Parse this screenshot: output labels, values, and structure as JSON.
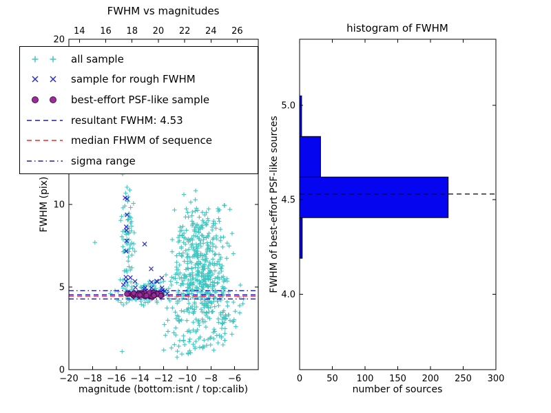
{
  "colors": {
    "cyan": "#3fc6c0",
    "blue_marker": "#2a2ac8",
    "blue_line": "#1a1ab8",
    "red": "#ff2222",
    "purple_fill": "#9b2d9b",
    "purple_edge": "#4b0f4b",
    "hist_fill": "#0505f0",
    "frame": "#000000",
    "text": "#000000"
  },
  "chart_data": [
    {
      "id": "fwhm-vs-mag",
      "type": "scatter",
      "title": "FWHM vs magnitudes",
      "xlabel": "magnitude (bottom:isnt / top:calib)",
      "ylabel": "FWHM (pix)",
      "xlim": [
        -20,
        -4
      ],
      "ylim": [
        0,
        20
      ],
      "grid": false,
      "x_ticks": {
        "values": [
          -20,
          -18,
          -16,
          -14,
          -12,
          -10,
          -8,
          -6
        ],
        "labels": [
          "−20",
          "−18",
          "−16",
          "−14",
          "−12",
          "−10",
          "−8",
          "−6"
        ]
      },
      "y_ticks": {
        "values": [
          0,
          5,
          10,
          15,
          20
        ],
        "labels": [
          "0",
          "5",
          "10",
          "15",
          "20"
        ]
      },
      "top_axis": {
        "lim": [
          13.2,
          27.6
        ],
        "values": [
          14,
          16,
          18,
          20,
          22,
          24,
          26
        ],
        "labels": [
          "14",
          "16",
          "18",
          "20",
          "22",
          "24",
          "26"
        ]
      },
      "hlines": [
        {
          "y": 4.53,
          "style": "dashed",
          "color_key": "blue_line",
          "name": "resultant-fwhm-line"
        },
        {
          "y": 4.45,
          "style": "dashed",
          "color_key": "red",
          "name": "median-fwhm-line"
        },
        {
          "y": 4.28,
          "style": "dashdot",
          "color_key": "blue_line",
          "name": "sigma-low-line"
        },
        {
          "y": 4.78,
          "style": "dashdot",
          "color_key": "blue_line",
          "name": "sigma-high-line"
        }
      ],
      "series": [
        {
          "name": "all sample",
          "marker": "plus",
          "color_key": "cyan",
          "seed": 101,
          "clusters": [
            {
              "count": 520,
              "x": {
                "mean": -8.9,
                "sd": 1.15
              },
              "y": {
                "mean": 6.0,
                "sd": 2.1
              },
              "clipx": [
                -12.2,
                -5.3
              ],
              "clipy": [
                1.0,
                12.5
              ]
            },
            {
              "count": 70,
              "x": {
                "mean": -15.05,
                "sd": 0.3
              },
              "y": {
                "mean": 7.8,
                "sd": 2.1
              },
              "clipx": [
                -15.8,
                -14.4
              ],
              "clipy": [
                4.2,
                12.6
              ]
            },
            {
              "count": 90,
              "x": {
                "mean": -13.4,
                "sd": 1.2
              },
              "y": {
                "mean": 4.62,
                "sd": 0.38
              },
              "clipx": [
                -16.2,
                -11.2
              ],
              "clipy": [
                3.6,
                5.9
              ]
            },
            {
              "count": 42,
              "x": {
                "mean": -10.8,
                "sd": 1.9
              },
              "y": {
                "mean": 14.3,
                "sd": 2.2
              },
              "clipx": [
                -15.6,
                -6.9
              ],
              "clipy": [
                12.0,
                19.6
              ]
            },
            {
              "count": 55,
              "x": {
                "mean": -7.1,
                "sd": 0.9
              },
              "y": {
                "mean": 3.3,
                "sd": 1.1
              },
              "clipx": [
                -8.8,
                -5.0
              ],
              "clipy": [
                1.4,
                6.2
              ]
            },
            {
              "count": 26,
              "x": {
                "mean": -9.8,
                "sd": 1.4
              },
              "y": {
                "mean": 1.7,
                "sd": 0.5
              },
              "clipx": [
                -13.0,
                -6.5
              ],
              "clipy": [
                0.6,
                2.7
              ]
            }
          ],
          "points": [
            [
              -17.8,
              7.7
            ],
            [
              -16.5,
              4.6
            ],
            [
              -15.5,
              1.1
            ],
            [
              -5.6,
              4.4
            ],
            [
              -5.9,
              2.6
            ],
            [
              -6.4,
              9.7
            ]
          ]
        },
        {
          "name": "sample for rough FWHM",
          "marker": "x",
          "color_key": "blue_marker",
          "seed": 55,
          "clusters": [
            {
              "count": 20,
              "x": {
                "mean": -13.9,
                "sd": 1.0
              },
              "y": {
                "mean": 4.95,
                "sd": 0.3
              },
              "clipx": [
                -15.6,
                -11.6
              ],
              "clipy": [
                4.4,
                5.8
              ]
            },
            {
              "count": 7,
              "x": {
                "mean": -15.15,
                "sd": 0.15
              },
              "y": {
                "mean": 7.8,
                "sd": 1.6
              },
              "clipx": [
                -15.5,
                -14.8
              ],
              "clipy": [
                5.5,
                10.8
              ]
            }
          ],
          "points": [
            [
              -13.6,
              7.6
            ],
            [
              -15.25,
              10.4
            ],
            [
              -12.15,
              5.55
            ],
            [
              -13.05,
              6.1
            ],
            [
              -11.7,
              4.6
            ],
            [
              -11.9,
              4.75
            ]
          ]
        },
        {
          "name": "best-effort PSF-like sample",
          "marker": "circle",
          "color_key": "purple_fill",
          "edge_key": "purple_edge",
          "seed": 9,
          "clusters": [
            {
              "count": 60,
              "x": {
                "mean": -13.4,
                "sd": 0.85
              },
              "y": {
                "mean": 4.52,
                "sd": 0.07
              },
              "clipx": [
                -15.1,
                -11.6
              ],
              "clipy": [
                4.3,
                4.75
              ]
            }
          ],
          "points": []
        }
      ],
      "legend": [
        {
          "label": "all sample",
          "swatch": "plus",
          "color_key": "cyan"
        },
        {
          "label": "sample for rough FWHM",
          "swatch": "x",
          "color_key": "blue_marker"
        },
        {
          "label": "best-effort PSF-like sample",
          "swatch": "circle",
          "color_key": "purple_fill"
        },
        {
          "label": "resultant FWHM: 4.53",
          "swatch": "dashed",
          "color_key": "blue_line"
        },
        {
          "label": "median FHWM of sequence",
          "swatch": "dashed",
          "color_key": "red"
        },
        {
          "label": "sigma range",
          "swatch": "dashdot",
          "color_key": "blue_line"
        }
      ]
    },
    {
      "id": "fwhm-histogram",
      "type": "bar",
      "orientation": "horizontal",
      "title": "histogram of FWHM",
      "xlabel": "number of sources",
      "ylabel": "FWHM of best-effort PSF-like sources",
      "xlim": [
        0,
        300
      ],
      "ylim": [
        3.6,
        5.35
      ],
      "x_ticks": {
        "values": [
          0,
          50,
          100,
          150,
          200,
          250,
          300
        ],
        "labels": [
          "0",
          "50",
          "100",
          "150",
          "200",
          "250",
          "300"
        ]
      },
      "y_ticks": {
        "values": [
          4.0,
          4.5,
          5.0
        ],
        "labels": [
          "4.0",
          "4.5",
          "5.0"
        ]
      },
      "bins": {
        "edges": [
          4.19,
          4.405,
          4.62,
          4.835,
          5.05
        ],
        "counts": [
          4,
          227,
          32,
          3
        ]
      },
      "median_line": {
        "y": 4.53,
        "style": "dashed",
        "color_key": "frame"
      }
    }
  ]
}
